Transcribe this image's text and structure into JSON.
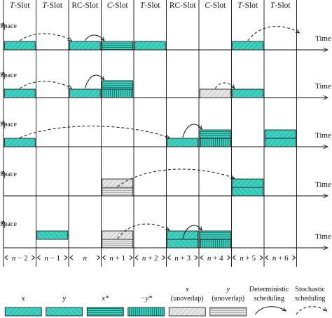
{
  "slot_headers": [
    {
      "prefix": "",
      "italic": "T",
      "suffix": "-Slot"
    },
    {
      "prefix": "",
      "italic": "T",
      "suffix": "-Slot"
    },
    {
      "prefix": "RC-Slot",
      "italic": "",
      "suffix": ""
    },
    {
      "prefix": "",
      "italic": "C",
      "suffix": "-Slot"
    },
    {
      "prefix": "",
      "italic": "T",
      "suffix": "-Slot"
    },
    {
      "prefix": "RC-Slot",
      "italic": "",
      "suffix": ""
    },
    {
      "prefix": "",
      "italic": "C",
      "suffix": "-Slot"
    },
    {
      "prefix": "",
      "italic": "T",
      "suffix": "-Slot"
    },
    {
      "prefix": "",
      "italic": "T",
      "suffix": "-Slot"
    }
  ],
  "slot_indices": [
    {
      "var": "n",
      "rest": " − 2"
    },
    {
      "var": "n",
      "rest": " − 1"
    },
    {
      "var": "n",
      "rest": ""
    },
    {
      "var": "n",
      "rest": " + 1"
    },
    {
      "var": "n",
      "rest": " + 2"
    },
    {
      "var": "n",
      "rest": " + 3"
    },
    {
      "var": "n",
      "rest": " + 4"
    },
    {
      "var": "n",
      "rest": " + 5"
    },
    {
      "var": "n",
      "rest": " + 6"
    }
  ],
  "axis": {
    "y_label": "Space",
    "x_label": "Time"
  },
  "rows": [
    {
      "blocks": [
        {
          "slot": 0,
          "level": 0,
          "type": "x"
        },
        {
          "slot": 2,
          "level": 0,
          "type": "x"
        },
        {
          "slot": 3,
          "level": 0,
          "type": "xstar"
        },
        {
          "slot": 4,
          "level": 0,
          "type": "x"
        },
        {
          "slot": 7,
          "level": 0,
          "type": "x"
        }
      ],
      "arrows": [
        {
          "from_slot": 0,
          "to_slot": 2,
          "to_level": 0,
          "style": "stochastic"
        },
        {
          "from_slot": 2,
          "to_slot": 3,
          "to_level": 0,
          "style": "deterministic"
        },
        {
          "from_slot": 7,
          "to_slot": 9,
          "to_level": 0,
          "style": "stochastic",
          "open_end": true
        }
      ]
    },
    {
      "blocks": [
        {
          "slot": 0,
          "level": 0,
          "type": "x"
        },
        {
          "slot": 2,
          "level": 0,
          "type": "x"
        },
        {
          "slot": 3,
          "level": 1,
          "type": "xstar"
        },
        {
          "slot": 3,
          "level": 0,
          "type": "negystar"
        },
        {
          "slot": 6,
          "level": 0,
          "type": "xun"
        },
        {
          "slot": 7,
          "level": 0,
          "type": "x"
        }
      ],
      "arrows": [
        {
          "from_slot": 0,
          "to_slot": 2,
          "to_level": 0,
          "style": "stochastic"
        },
        {
          "from_slot": 2,
          "to_slot": 3,
          "to_level": 1,
          "style": "deterministic"
        },
        {
          "from_slot": 6,
          "to_slot": 7,
          "to_level": 0,
          "style": "stochastic"
        }
      ]
    },
    {
      "blocks": [
        {
          "slot": 0,
          "level": 0,
          "type": "x"
        },
        {
          "slot": 5,
          "level": 0,
          "type": "x"
        },
        {
          "slot": 6,
          "level": 1,
          "type": "xstar"
        },
        {
          "slot": 6,
          "level": 0,
          "type": "negystar"
        },
        {
          "slot": 8,
          "level": 1,
          "type": "x"
        },
        {
          "slot": 8,
          "level": 0,
          "type": "x"
        }
      ],
      "arrows": [
        {
          "from_slot": 0,
          "to_slot": 5,
          "to_level": 0,
          "style": "stochastic"
        },
        {
          "from_slot": 5,
          "to_slot": 6,
          "to_level": 1,
          "style": "deterministic"
        }
      ]
    },
    {
      "blocks": [
        {
          "slot": 3,
          "level": 1,
          "type": "xun"
        },
        {
          "slot": 3,
          "level": 0,
          "type": "yun"
        },
        {
          "slot": 7,
          "level": 1,
          "type": "x"
        },
        {
          "slot": 7,
          "level": 0,
          "type": "y"
        }
      ],
      "arrows": [
        {
          "from_slot": 3,
          "to_slot": 7,
          "to_level": 1,
          "style": "stochastic"
        }
      ]
    },
    {
      "blocks": [
        {
          "slot": 1,
          "level": 1,
          "type": "y"
        },
        {
          "slot": 3,
          "level": 1,
          "type": "xun"
        },
        {
          "slot": 3,
          "level": 0,
          "type": "yun"
        },
        {
          "slot": 5,
          "level": 1,
          "type": "x"
        },
        {
          "slot": 5,
          "level": 0,
          "type": "y"
        },
        {
          "slot": 6,
          "level": 1,
          "type": "xstar"
        },
        {
          "slot": 6,
          "level": 0,
          "type": "negystar"
        }
      ],
      "arrows": [
        {
          "from_slot": 3,
          "to_slot": 5,
          "to_level": 1,
          "style": "stochastic"
        },
        {
          "from_slot": 5,
          "to_slot": 6,
          "to_level": 1,
          "style": "deterministic"
        }
      ]
    }
  ],
  "legend": [
    {
      "type": "x",
      "label": "x",
      "sub": ""
    },
    {
      "type": "y",
      "label": "y",
      "sub": ""
    },
    {
      "type": "xstar",
      "label": "x*",
      "sub": ""
    },
    {
      "type": "negystar",
      "label": "−y*",
      "sub": ""
    },
    {
      "type": "xun",
      "label": "x",
      "sub": "(unoverlap)"
    },
    {
      "type": "yun",
      "label": "y",
      "sub": "(unoverlap)"
    },
    {
      "type": "det",
      "label": "Deterministic",
      "sub": "scheduling"
    },
    {
      "type": "sto",
      "label": "Stochastic",
      "sub": "scheduling"
    }
  ],
  "colors": {
    "teal": "#3fd0c0",
    "teal_dark": "#18a594",
    "grey_light": "#e4e4e4",
    "grey_mid": "#c4c4c4",
    "ink": "#111111"
  }
}
